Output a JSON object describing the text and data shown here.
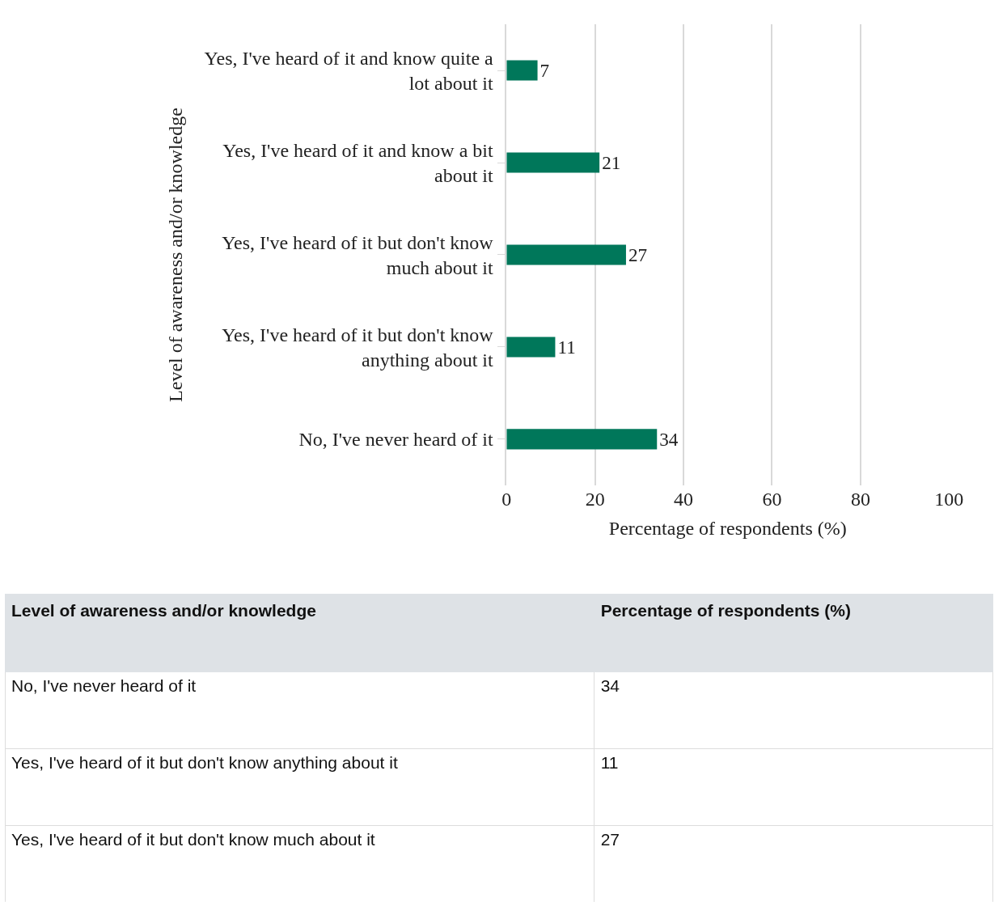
{
  "chart_data": [
    {
      "type": "bar",
      "orientation": "horizontal",
      "xlabel": "Percentage of respondents (%)",
      "ylabel": "Level of awareness and/or knowledge",
      "categories": [
        "Yes, I've heard of it and know quite a lot about it",
        "Yes, I've heard of it and know a bit about it",
        "Yes, I've heard of it but don't know much about it",
        "Yes, I've heard of it but don't know anything about it",
        "No, I've never heard of it"
      ],
      "values": [
        7,
        21,
        27,
        11,
        34
      ],
      "color": "#00775a",
      "data_labels": true,
      "xlim": [
        0,
        100
      ],
      "xticks": [
        0,
        20,
        40,
        60,
        80,
        100
      ],
      "grid": "x"
    },
    {
      "type": "other",
      "xlabel": "Level of awareness and/or knowledge",
      "ylabel": "Percentage of respondents (%)",
      "categories": [
        "No, I've never heard of it",
        "Yes, I've heard of it but don't know anything about it",
        "Yes, I've heard of it but don't know much about it"
      ],
      "values": [
        34,
        11,
        27
      ],
      "data_labels": true
    }
  ]
}
